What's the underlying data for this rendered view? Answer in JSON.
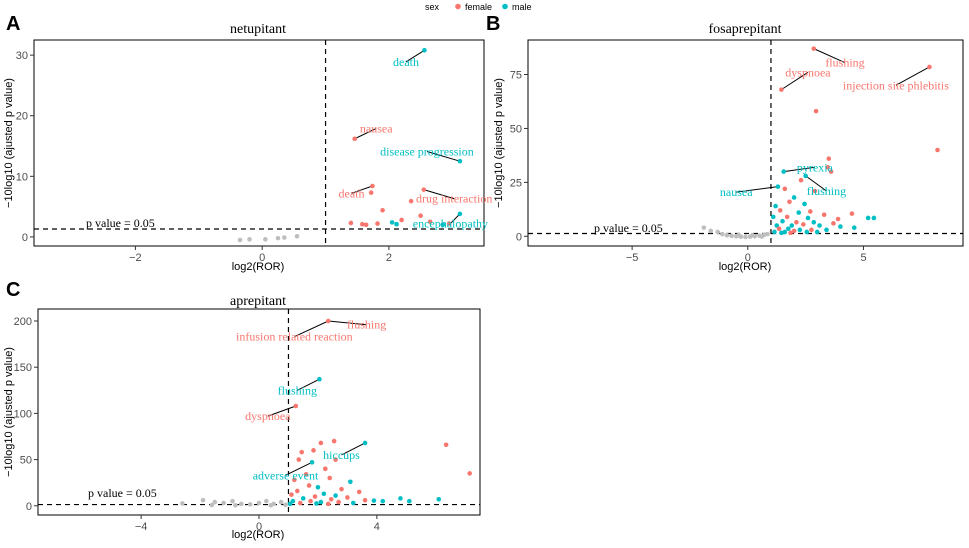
{
  "legend": {
    "title": "sex",
    "items": [
      {
        "label": "female",
        "color": "#F8766D"
      },
      {
        "label": "male",
        "color": "#00BFC4"
      }
    ]
  },
  "colors": {
    "female": "#F8766D",
    "male": "#00BFC4",
    "nonsig": "#BEBEBE"
  },
  "pvalue_label": "p value = 0.05",
  "chart_data": [
    {
      "panel": "A",
      "type": "scatter",
      "title": "netupitant",
      "xlabel": "log2(ROR)",
      "ylabel": "−10log10 (ajusted p value)",
      "xlim": [
        -3.6,
        3.5
      ],
      "ylim": [
        -1.5,
        32.5
      ],
      "xticks": [
        -2,
        0,
        2
      ],
      "yticks": [
        0,
        10,
        20,
        30
      ],
      "vline": 1,
      "hline": 1.3,
      "points": [
        {
          "x": 2.56,
          "y": 30.8,
          "sex": "male"
        },
        {
          "x": 1.46,
          "y": 16.2,
          "sex": "female"
        },
        {
          "x": 3.12,
          "y": 12.5,
          "sex": "male"
        },
        {
          "x": 1.74,
          "y": 8.4,
          "sex": "female"
        },
        {
          "x": 2.55,
          "y": 7.8,
          "sex": "female"
        },
        {
          "x": 1.72,
          "y": 7.3,
          "sex": "female"
        },
        {
          "x": 2.35,
          "y": 5.9,
          "sex": "female"
        },
        {
          "x": 2.5,
          "y": 3.5,
          "sex": "female"
        },
        {
          "x": 1.9,
          "y": 4.4,
          "sex": "female"
        },
        {
          "x": 3.12,
          "y": 3.8,
          "sex": "male"
        },
        {
          "x": 2.2,
          "y": 2.8,
          "sex": "female"
        },
        {
          "x": 1.4,
          "y": 2.3,
          "sex": "female"
        },
        {
          "x": 1.58,
          "y": 2.1,
          "sex": "female"
        },
        {
          "x": 1.64,
          "y": 2.0,
          "sex": "female"
        },
        {
          "x": 1.82,
          "y": 2.2,
          "sex": "female"
        },
        {
          "x": 2.05,
          "y": 2.4,
          "sex": "male"
        },
        {
          "x": 2.12,
          "y": 2.1,
          "sex": "male"
        },
        {
          "x": 2.65,
          "y": 2.5,
          "sex": "female"
        },
        {
          "x": 2.85,
          "y": 2.0,
          "sex": "male"
        },
        {
          "x": 2.95,
          "y": 2.2,
          "sex": "female"
        },
        {
          "x": -0.35,
          "y": -0.5,
          "sex": "nonsig"
        },
        {
          "x": -0.2,
          "y": -0.4,
          "sex": "nonsig"
        },
        {
          "x": 0.05,
          "y": -0.4,
          "sex": "nonsig"
        },
        {
          "x": 0.25,
          "y": -0.2,
          "sex": "nonsig"
        },
        {
          "x": 0.35,
          "y": -0.1,
          "sex": "nonsig"
        },
        {
          "x": 0.55,
          "y": 0.1,
          "sex": "nonsig"
        }
      ],
      "annotations": [
        {
          "text": "death",
          "sex": "male",
          "x": 2.56,
          "y": 30.8,
          "lx": 2.27,
          "ly": 28.9
        },
        {
          "text": "nausea",
          "sex": "female",
          "x": 1.46,
          "y": 16.2,
          "lx": 1.8,
          "ly": 17.9
        },
        {
          "text": "disease progression",
          "sex": "male",
          "x": 3.12,
          "y": 12.5,
          "lx": 2.6,
          "ly": 14.1
        },
        {
          "text": "death",
          "sex": "female",
          "x": 1.74,
          "y": 8.4,
          "lx": 1.41,
          "ly": 7.2
        },
        {
          "text": "drug interaction",
          "sex": "female",
          "x": 2.55,
          "y": 7.8,
          "lx": 3.03,
          "ly": 6.3
        },
        {
          "text": "encephalopathy",
          "sex": "male",
          "x": 3.12,
          "y": 3.8,
          "lx": 2.97,
          "ly": 2.2
        }
      ]
    },
    {
      "panel": "B",
      "type": "scatter",
      "title": "fosaprepitant",
      "xlabel": "log2(ROR)",
      "ylabel": "−10log10 (ajusted p value)",
      "xlim": [
        -9.5,
        9.3
      ],
      "ylim": [
        -4.5,
        91
      ],
      "xticks": [
        -5,
        0,
        5
      ],
      "yticks": [
        0,
        25,
        50,
        75
      ],
      "vline": 1,
      "hline": 1.3,
      "points": [
        {
          "x": 2.85,
          "y": 87.0,
          "sex": "female"
        },
        {
          "x": 7.85,
          "y": 78.5,
          "sex": "female"
        },
        {
          "x": 1.45,
          "y": 68.0,
          "sex": "female"
        },
        {
          "x": 2.95,
          "y": 58.0,
          "sex": "female"
        },
        {
          "x": 8.2,
          "y": 40.0,
          "sex": "female"
        },
        {
          "x": 3.5,
          "y": 36.0,
          "sex": "female"
        },
        {
          "x": 3.45,
          "y": 32.0,
          "sex": "female"
        },
        {
          "x": 3.6,
          "y": 30.0,
          "sex": "female"
        },
        {
          "x": 1.55,
          "y": 30.0,
          "sex": "male"
        },
        {
          "x": 2.5,
          "y": 28.0,
          "sex": "male"
        },
        {
          "x": 2.3,
          "y": 26.0,
          "sex": "female"
        },
        {
          "x": 1.3,
          "y": 23.0,
          "sex": "male"
        },
        {
          "x": 1.6,
          "y": 22.0,
          "sex": "female"
        },
        {
          "x": 2.9,
          "y": 21.0,
          "sex": "female"
        },
        {
          "x": 2.0,
          "y": 18.0,
          "sex": "male"
        },
        {
          "x": 1.8,
          "y": 16.0,
          "sex": "female"
        },
        {
          "x": 2.45,
          "y": 15.0,
          "sex": "male"
        },
        {
          "x": 1.2,
          "y": 14.0,
          "sex": "male"
        },
        {
          "x": 1.4,
          "y": 12.0,
          "sex": "female"
        },
        {
          "x": 2.2,
          "y": 11.0,
          "sex": "male"
        },
        {
          "x": 2.7,
          "y": 11.5,
          "sex": "female"
        },
        {
          "x": 3.3,
          "y": 10.0,
          "sex": "female"
        },
        {
          "x": 4.5,
          "y": 10.5,
          "sex": "female"
        },
        {
          "x": 1.1,
          "y": 9.0,
          "sex": "male"
        },
        {
          "x": 1.7,
          "y": 9.0,
          "sex": "female"
        },
        {
          "x": 2.6,
          "y": 8.5,
          "sex": "male"
        },
        {
          "x": 5.2,
          "y": 8.5,
          "sex": "male"
        },
        {
          "x": 5.45,
          "y": 8.5,
          "sex": "male"
        },
        {
          "x": 3.9,
          "y": 8.0,
          "sex": "female"
        },
        {
          "x": 1.5,
          "y": 7.0,
          "sex": "male"
        },
        {
          "x": 2.1,
          "y": 6.5,
          "sex": "female"
        },
        {
          "x": 2.85,
          "y": 6.5,
          "sex": "male"
        },
        {
          "x": 3.7,
          "y": 6.0,
          "sex": "female"
        },
        {
          "x": 1.25,
          "y": 5.0,
          "sex": "male"
        },
        {
          "x": 1.9,
          "y": 5.0,
          "sex": "male"
        },
        {
          "x": 2.4,
          "y": 5.5,
          "sex": "female"
        },
        {
          "x": 3.1,
          "y": 5.0,
          "sex": "male"
        },
        {
          "x": 4.0,
          "y": 4.5,
          "sex": "male"
        },
        {
          "x": 4.6,
          "y": 4.0,
          "sex": "male"
        },
        {
          "x": 1.35,
          "y": 3.5,
          "sex": "female"
        },
        {
          "x": 1.75,
          "y": 3.5,
          "sex": "male"
        },
        {
          "x": 2.25,
          "y": 3.0,
          "sex": "male"
        },
        {
          "x": 2.75,
          "y": 3.0,
          "sex": "female"
        },
        {
          "x": 3.4,
          "y": 3.0,
          "sex": "male"
        },
        {
          "x": 1.15,
          "y": 2.0,
          "sex": "male"
        },
        {
          "x": 1.6,
          "y": 2.0,
          "sex": "male"
        },
        {
          "x": 2.0,
          "y": 2.5,
          "sex": "female"
        },
        {
          "x": 2.55,
          "y": 2.0,
          "sex": "male"
        },
        {
          "x": 3.0,
          "y": 2.0,
          "sex": "male"
        },
        {
          "x": 1.45,
          "y": 1.6,
          "sex": "male"
        },
        {
          "x": 1.85,
          "y": 1.6,
          "sex": "female"
        },
        {
          "x": -1.9,
          "y": 4.0,
          "sex": "nonsig"
        },
        {
          "x": -1.6,
          "y": 2.5,
          "sex": "nonsig"
        },
        {
          "x": -1.3,
          "y": 2.0,
          "sex": "nonsig"
        },
        {
          "x": -1.1,
          "y": 1.0,
          "sex": "nonsig"
        },
        {
          "x": -0.9,
          "y": 0.5,
          "sex": "nonsig"
        },
        {
          "x": -0.7,
          "y": 0.2,
          "sex": "nonsig"
        },
        {
          "x": -0.5,
          "y": 0.0,
          "sex": "nonsig"
        },
        {
          "x": -0.3,
          "y": -0.2,
          "sex": "nonsig"
        },
        {
          "x": -0.1,
          "y": -0.3,
          "sex": "nonsig"
        },
        {
          "x": 0.1,
          "y": -0.2,
          "sex": "nonsig"
        },
        {
          "x": 0.3,
          "y": 0.0,
          "sex": "nonsig"
        },
        {
          "x": 0.5,
          "y": 0.3,
          "sex": "nonsig"
        },
        {
          "x": 0.7,
          "y": 0.6,
          "sex": "nonsig"
        },
        {
          "x": 0.85,
          "y": 1.0,
          "sex": "nonsig"
        },
        {
          "x": 0.2,
          "y": 0.5,
          "sex": "nonsig"
        },
        {
          "x": -0.4,
          "y": 0.6,
          "sex": "nonsig"
        },
        {
          "x": 0.6,
          "y": -0.1,
          "sex": "nonsig"
        }
      ],
      "annotations": [
        {
          "text": "flushing",
          "sex": "female",
          "x": 2.85,
          "y": 87.0,
          "lx": 4.2,
          "ly": 80.5
        },
        {
          "text": "dyspnoea",
          "sex": "female",
          "x": 1.45,
          "y": 68.0,
          "lx": 2.6,
          "ly": 76.0
        },
        {
          "text": "injection site phlebitis",
          "sex": "female",
          "x": 7.85,
          "y": 78.5,
          "lx": 6.4,
          "ly": 70.0
        },
        {
          "text": "pyrexia",
          "sex": "male",
          "x": 1.55,
          "y": 30.0,
          "lx": 2.9,
          "ly": 32.0
        },
        {
          "text": "nausea",
          "sex": "male",
          "x": 1.3,
          "y": 23.0,
          "lx": -0.5,
          "ly": 20.5
        },
        {
          "text": "flushing",
          "sex": "male",
          "x": 2.5,
          "y": 28.0,
          "lx": 3.4,
          "ly": 21.0
        }
      ]
    },
    {
      "panel": "C",
      "type": "scatter",
      "title": "aprepitant",
      "xlabel": "log2(ROR)",
      "ylabel": "−10log10 (ajusted p value)",
      "xlim": [
        -7.5,
        7.5
      ],
      "ylim": [
        -10,
        213
      ],
      "xticks": [
        -4,
        0,
        4
      ],
      "yticks": [
        0,
        50,
        100,
        150,
        200
      ],
      "vline": 1,
      "hline": 1.3,
      "points": [
        {
          "x": 2.35,
          "y": 200.0,
          "sex": "female"
        },
        {
          "x": 2.05,
          "y": 137.0,
          "sex": "male"
        },
        {
          "x": 1.25,
          "y": 108.0,
          "sex": "female"
        },
        {
          "x": 3.6,
          "y": 68.0,
          "sex": "male"
        },
        {
          "x": 6.35,
          "y": 66.0,
          "sex": "female"
        },
        {
          "x": 2.55,
          "y": 70.0,
          "sex": "female"
        },
        {
          "x": 2.1,
          "y": 68.0,
          "sex": "female"
        },
        {
          "x": 1.85,
          "y": 60.0,
          "sex": "female"
        },
        {
          "x": 1.45,
          "y": 58.0,
          "sex": "female"
        },
        {
          "x": 2.6,
          "y": 50.0,
          "sex": "female"
        },
        {
          "x": 1.35,
          "y": 50.0,
          "sex": "female"
        },
        {
          "x": 1.8,
          "y": 47.0,
          "sex": "male"
        },
        {
          "x": 2.25,
          "y": 40.0,
          "sex": "female"
        },
        {
          "x": 7.15,
          "y": 35.0,
          "sex": "female"
        },
        {
          "x": 1.6,
          "y": 34.0,
          "sex": "female"
        },
        {
          "x": 2.4,
          "y": 30.0,
          "sex": "female"
        },
        {
          "x": 1.2,
          "y": 28.0,
          "sex": "female"
        },
        {
          "x": 3.1,
          "y": 26.0,
          "sex": "male"
        },
        {
          "x": 1.7,
          "y": 22.0,
          "sex": "female"
        },
        {
          "x": 2.0,
          "y": 20.0,
          "sex": "male"
        },
        {
          "x": 2.8,
          "y": 18.0,
          "sex": "female"
        },
        {
          "x": 1.3,
          "y": 16.0,
          "sex": "female"
        },
        {
          "x": 3.4,
          "y": 15.0,
          "sex": "female"
        },
        {
          "x": 2.2,
          "y": 13.0,
          "sex": "male"
        },
        {
          "x": 1.1,
          "y": 12.0,
          "sex": "female"
        },
        {
          "x": 2.6,
          "y": 11.0,
          "sex": "male"
        },
        {
          "x": 1.9,
          "y": 10.0,
          "sex": "female"
        },
        {
          "x": 3.0,
          "y": 9.0,
          "sex": "female"
        },
        {
          "x": 4.8,
          "y": 8.0,
          "sex": "male"
        },
        {
          "x": 6.1,
          "y": 7.0,
          "sex": "male"
        },
        {
          "x": 1.5,
          "y": 8.0,
          "sex": "male"
        },
        {
          "x": 2.45,
          "y": 7.0,
          "sex": "female"
        },
        {
          "x": 3.6,
          "y": 6.0,
          "sex": "female"
        },
        {
          "x": 3.9,
          "y": 5.5,
          "sex": "male"
        },
        {
          "x": 4.2,
          "y": 5.0,
          "sex": "male"
        },
        {
          "x": 5.1,
          "y": 5.0,
          "sex": "male"
        },
        {
          "x": 1.15,
          "y": 5.0,
          "sex": "male"
        },
        {
          "x": 1.75,
          "y": 5.0,
          "sex": "female"
        },
        {
          "x": 2.1,
          "y": 4.0,
          "sex": "male"
        },
        {
          "x": 2.7,
          "y": 4.0,
          "sex": "female"
        },
        {
          "x": 3.2,
          "y": 3.0,
          "sex": "male"
        },
        {
          "x": 1.4,
          "y": 3.0,
          "sex": "female"
        },
        {
          "x": 1.95,
          "y": 2.5,
          "sex": "male"
        },
        {
          "x": 2.35,
          "y": 2.0,
          "sex": "female"
        },
        {
          "x": 1.05,
          "y": 2.0,
          "sex": "male"
        },
        {
          "x": -2.6,
          "y": 2.5,
          "sex": "nonsig"
        },
        {
          "x": -1.9,
          "y": 6.0,
          "sex": "nonsig"
        },
        {
          "x": -1.5,
          "y": 4.0,
          "sex": "nonsig"
        },
        {
          "x": -1.2,
          "y": 3.0,
          "sex": "nonsig"
        },
        {
          "x": -0.9,
          "y": 5.0,
          "sex": "nonsig"
        },
        {
          "x": -0.6,
          "y": 2.0,
          "sex": "nonsig"
        },
        {
          "x": -0.3,
          "y": 1.5,
          "sex": "nonsig"
        },
        {
          "x": 0.0,
          "y": 3.0,
          "sex": "nonsig"
        },
        {
          "x": 0.25,
          "y": 5.0,
          "sex": "nonsig"
        },
        {
          "x": 0.5,
          "y": 2.0,
          "sex": "nonsig"
        },
        {
          "x": 0.75,
          "y": 4.0,
          "sex": "nonsig"
        },
        {
          "x": 0.9,
          "y": 1.0,
          "sex": "nonsig"
        },
        {
          "x": -0.8,
          "y": 0.5,
          "sex": "nonsig"
        },
        {
          "x": 0.4,
          "y": 0.5,
          "sex": "nonsig"
        },
        {
          "x": -1.6,
          "y": 0.8,
          "sex": "nonsig"
        }
      ],
      "annotations": [
        {
          "text": "flushing",
          "sex": "female",
          "x": 2.35,
          "y": 200.0,
          "lx": 3.65,
          "ly": 196.0
        },
        {
          "text": "infusion related reaction",
          "sex": "female",
          "x": 2.35,
          "y": 200.0,
          "lx": 1.2,
          "ly": 183.0
        },
        {
          "text": "flushing",
          "sex": "male",
          "x": 2.05,
          "y": 137.0,
          "lx": 1.3,
          "ly": 125.0
        },
        {
          "text": "dyspnoea",
          "sex": "female",
          "x": 1.25,
          "y": 108.0,
          "lx": 0.3,
          "ly": 97.0
        },
        {
          "text": "hiccups",
          "sex": "male",
          "x": 3.6,
          "y": 68.0,
          "lx": 2.8,
          "ly": 55.0
        },
        {
          "text": "adverse event",
          "sex": "male",
          "x": 1.8,
          "y": 47.0,
          "lx": 0.9,
          "ly": 33.0
        }
      ]
    }
  ]
}
